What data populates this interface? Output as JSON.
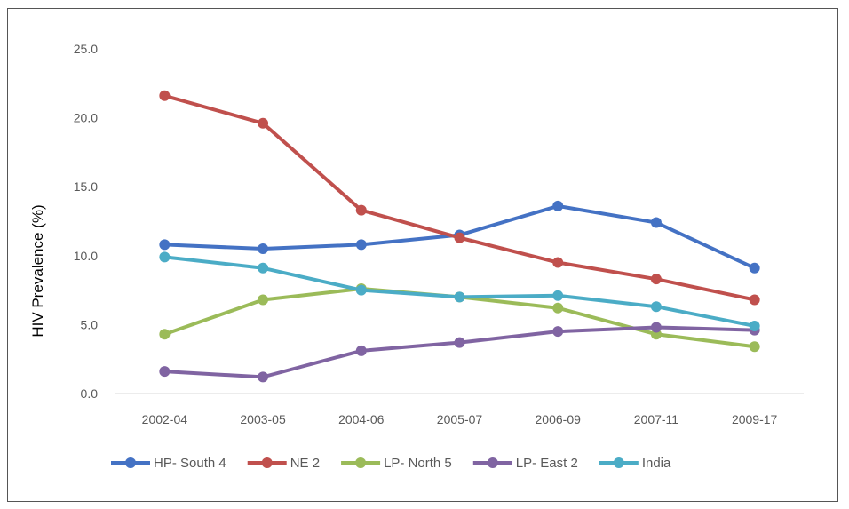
{
  "chart_data": {
    "type": "line",
    "title": "",
    "xlabel": "",
    "ylabel": "HIV Prevalence (%)",
    "ylim": [
      0,
      25
    ],
    "yticks": [
      "0.0",
      "5.0",
      "10.0",
      "15.0",
      "20.0",
      "25.0"
    ],
    "categories": [
      "2002-04",
      "2003-05",
      "2004-06",
      "2005-07",
      "2006-09",
      "2007-11",
      "2009-17"
    ],
    "grid": false,
    "legend": "bottom",
    "series": [
      {
        "name": "HP- South 4",
        "color": "#4472C4",
        "values": [
          10.8,
          10.5,
          10.8,
          11.5,
          13.6,
          12.4,
          9.1
        ]
      },
      {
        "name": "NE 2",
        "color": "#C0504D",
        "values": [
          21.6,
          19.6,
          13.3,
          11.3,
          9.5,
          8.3,
          6.8
        ]
      },
      {
        "name": "LP- North 5",
        "color": "#9BBB59",
        "values": [
          4.3,
          6.8,
          7.6,
          7.0,
          6.2,
          4.3,
          3.4
        ]
      },
      {
        "name": "LP- East 2",
        "color": "#8064A2",
        "values": [
          1.6,
          1.2,
          3.1,
          3.7,
          4.5,
          4.8,
          4.6
        ]
      },
      {
        "name": "India",
        "color": "#4BACC6",
        "values": [
          9.9,
          9.1,
          7.5,
          7.0,
          7.1,
          6.3,
          4.9
        ]
      }
    ]
  }
}
